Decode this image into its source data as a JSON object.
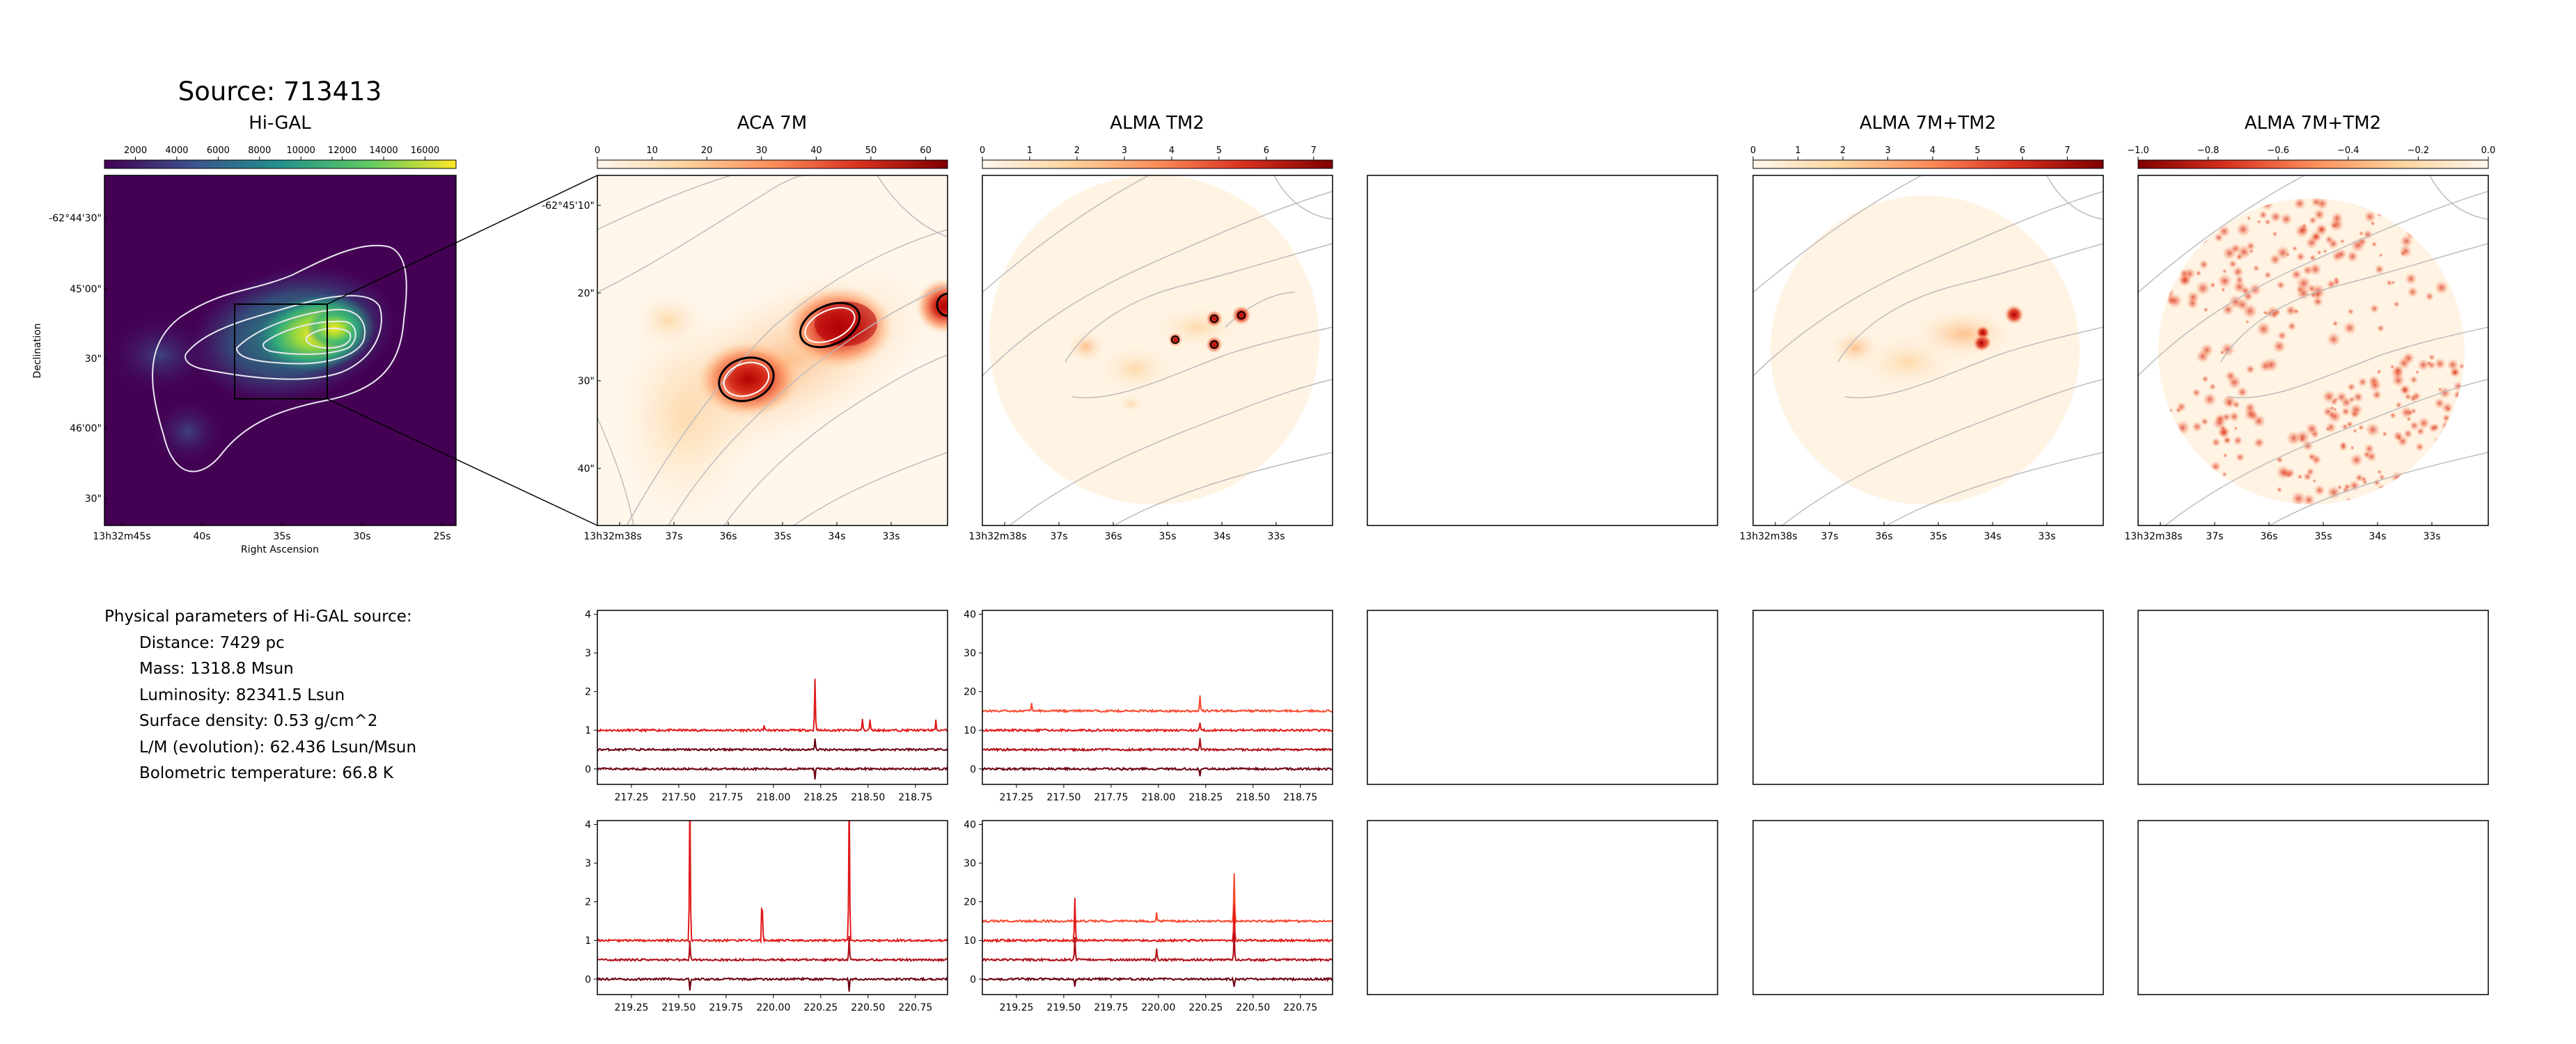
{
  "page": {
    "source_title": "Source: 713413"
  },
  "params": {
    "heading": "Physical parameters of Hi-GAL source:",
    "items": [
      "Distance: 7429 pc",
      "Mass: 1318.8 Msun",
      "Luminosity: 82341.5 Lsun",
      "Surface density: 0.53 g/cm^2",
      "L/M (evolution): 62.436 Lsun/Msun",
      "Bolometric temperature: 66.8 K"
    ]
  },
  "colors": {
    "spec_top": "#fb4a2f",
    "spec_mid": "#e01a1a",
    "spec_low": "#b0101a",
    "spec_bot": "#6b0010"
  },
  "chart_data": [
    {
      "type": "heatmap",
      "panel": "higal",
      "title": "Hi-GAL",
      "xlabel": "Right Ascension",
      "ylabel": "Declination",
      "colorbar_ticks": [
        "2000",
        "4000",
        "6000",
        "8000",
        "10000",
        "12000",
        "14000",
        "16000"
      ],
      "colorbar_range": [
        500,
        17500
      ],
      "x_ticks": [
        "13h32m45s",
        "40s",
        "35s",
        "30s",
        "25s"
      ],
      "y_ticks": [
        "-62°44'30\"",
        "45'00\"",
        "30\"",
        "46'00\"",
        "30\""
      ]
    },
    {
      "type": "heatmap",
      "panel": "aca",
      "title": "ACA 7M",
      "colorbar_ticks": [
        "0",
        "10",
        "20",
        "30",
        "40",
        "50",
        "60"
      ],
      "colorbar_range": [
        0,
        64
      ],
      "x_ticks": [
        "13h32m38s",
        "37s",
        "36s",
        "35s",
        "34s",
        "33s"
      ],
      "y_ticks": [
        "-62°45'10\"",
        "20\"",
        "30\"",
        "40\""
      ]
    },
    {
      "type": "heatmap",
      "panel": "tm2",
      "title": "ALMA TM2",
      "colorbar_ticks": [
        "0",
        "1",
        "2",
        "3",
        "4",
        "5",
        "6",
        "7"
      ],
      "colorbar_range": [
        0,
        7.4
      ],
      "x_ticks": [
        "13h32m38s",
        "37s",
        "36s",
        "35s",
        "34s",
        "33s"
      ]
    },
    {
      "type": "heatmap",
      "panel": "combo",
      "title": "ALMA 7M+TM2",
      "colorbar_ticks": [
        "0",
        "1",
        "2",
        "3",
        "4",
        "5",
        "6",
        "7"
      ],
      "colorbar_range": [
        0,
        7.8
      ],
      "x_ticks": [
        "13h32m38s",
        "37s",
        "36s",
        "35s",
        "34s",
        "33s"
      ]
    },
    {
      "type": "heatmap",
      "panel": "resid",
      "title": "ALMA 7M+TM2",
      "colorbar_ticks": [
        "−1.0",
        "−0.8",
        "−0.6",
        "−0.4",
        "−0.2",
        "0.0"
      ],
      "colorbar_range": [
        -1.0,
        0.0
      ],
      "x_ticks": [
        "13h32m38s",
        "37s",
        "36s",
        "35s",
        "34s",
        "33s"
      ]
    },
    {
      "type": "line",
      "panel": "spec_aca_1",
      "xlim": [
        217.07,
        218.92
      ],
      "ylim": [
        -0.4,
        4.1
      ],
      "x_ticks": [
        217.25,
        217.5,
        217.75,
        218.0,
        218.25,
        218.5,
        218.75
      ],
      "y_ticks": [
        0,
        1,
        2,
        3,
        4
      ],
      "series": [
        {
          "offset": 1.0,
          "color": "spec_mid",
          "peaks": [
            [
              218.22,
              1.35
            ],
            [
              218.47,
              0.3
            ],
            [
              218.51,
              0.28
            ],
            [
              217.95,
              0.12
            ],
            [
              218.86,
              0.25
            ]
          ]
        },
        {
          "offset": 0.5,
          "color": "spec_bot",
          "peaks": [
            [
              218.22,
              0.3
            ]
          ]
        },
        {
          "offset": 0.0,
          "color": "spec_bot",
          "peaks": [
            [
              218.22,
              -0.25
            ]
          ]
        }
      ]
    },
    {
      "type": "line",
      "panel": "spec_tm2_1",
      "xlim": [
        217.07,
        218.92
      ],
      "ylim": [
        -4,
        41
      ],
      "x_ticks": [
        217.25,
        217.5,
        217.75,
        218.0,
        218.25,
        218.5,
        218.75
      ],
      "y_ticks": [
        0,
        10,
        20,
        30,
        40
      ],
      "series": [
        {
          "offset": 15,
          "color": "spec_top",
          "peaks": [
            [
              218.22,
              4
            ],
            [
              217.33,
              2
            ]
          ]
        },
        {
          "offset": 10,
          "color": "spec_mid",
          "peaks": [
            [
              218.22,
              2
            ]
          ]
        },
        {
          "offset": 5,
          "color": "spec_low",
          "peaks": [
            [
              218.22,
              3
            ]
          ]
        },
        {
          "offset": 0,
          "color": "spec_bot",
          "peaks": [
            [
              218.22,
              -2
            ]
          ]
        }
      ]
    },
    {
      "type": "line",
      "panel": "spec_aca_2",
      "xlim": [
        219.07,
        220.92
      ],
      "ylim": [
        -0.4,
        4.1
      ],
      "x_ticks": [
        219.25,
        219.5,
        219.75,
        220.0,
        220.25,
        220.5,
        220.75
      ],
      "y_ticks": [
        0,
        1,
        2,
        3,
        4
      ],
      "series": [
        {
          "offset": 1.0,
          "color": "spec_mid",
          "peaks": [
            [
              219.56,
              4.0
            ],
            [
              219.94,
              0.8
            ],
            [
              220.4,
              4.0
            ]
          ]
        },
        {
          "offset": 0.5,
          "color": "spec_low",
          "peaks": [
            [
              219.56,
              0.5
            ],
            [
              220.4,
              0.6
            ]
          ]
        },
        {
          "offset": 0.0,
          "color": "spec_bot",
          "peaks": [
            [
              219.56,
              -0.3
            ],
            [
              220.4,
              -0.3
            ]
          ]
        }
      ]
    },
    {
      "type": "line",
      "panel": "spec_tm2_2",
      "xlim": [
        219.07,
        220.92
      ],
      "ylim": [
        -4,
        41
      ],
      "x_ticks": [
        219.25,
        219.5,
        219.75,
        220.0,
        220.25,
        220.5,
        220.75
      ],
      "y_ticks": [
        0,
        10,
        20,
        30,
        40
      ],
      "series": [
        {
          "offset": 15,
          "color": "spec_top",
          "peaks": [
            [
              220.4,
              12.5
            ],
            [
              219.99,
              2.5
            ]
          ]
        },
        {
          "offset": 10,
          "color": "spec_mid",
          "peaks": [
            [
              219.56,
              11
            ],
            [
              220.4,
              9
            ]
          ]
        },
        {
          "offset": 5,
          "color": "spec_low",
          "peaks": [
            [
              219.56,
              6
            ],
            [
              219.99,
              3
            ],
            [
              220.4,
              7
            ]
          ]
        },
        {
          "offset": 0,
          "color": "spec_bot",
          "peaks": [
            [
              219.56,
              -2
            ],
            [
              220.4,
              -2
            ]
          ]
        }
      ]
    }
  ]
}
